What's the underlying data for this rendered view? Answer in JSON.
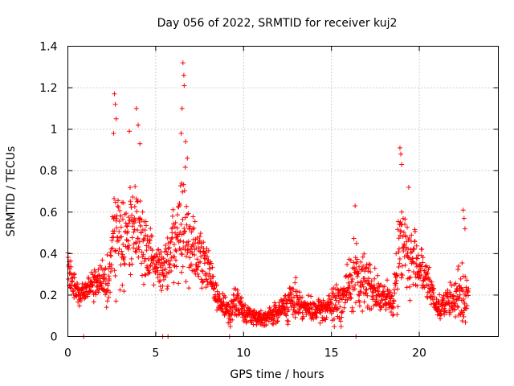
{
  "chart_data": {
    "type": "scatter",
    "title": "Day 056 of 2022, SRMTID for receiver kuj2",
    "xlabel": "GPS time / hours",
    "ylabel": "SRMTID / TECUs",
    "xlim": [
      0,
      24.5
    ],
    "ylim": [
      0,
      1.4
    ],
    "x_ticks": [
      0,
      5,
      10,
      15,
      20
    ],
    "y_ticks": [
      0,
      0.2,
      0.4,
      0.6,
      0.8,
      1,
      1.2,
      1.4
    ],
    "x_tick_labels": [
      "0",
      "5",
      "10",
      "15",
      "20"
    ],
    "y_tick_labels": [
      "0",
      "0.2",
      "0.4",
      "0.6",
      "0.8",
      "1",
      "1.2",
      "1.4"
    ],
    "grid": true,
    "marker": "+",
    "color": "#ff0000",
    "series": [
      {
        "name": "kuj2",
        "profile_x": [
          0.0,
          0.3,
          0.6,
          1.0,
          1.5,
          2.0,
          2.4,
          2.7,
          3.0,
          3.3,
          3.6,
          4.0,
          4.3,
          4.6,
          5.0,
          5.4,
          5.8,
          6.2,
          6.5,
          6.8,
          7.1,
          7.5,
          8.0,
          8.4,
          8.8,
          9.2,
          9.6,
          10.0,
          10.5,
          11.0,
          11.5,
          12.0,
          12.5,
          13.0,
          13.5,
          14.0,
          14.5,
          15.0,
          15.5,
          16.0,
          16.3,
          16.6,
          17.0,
          17.5,
          18.0,
          18.5,
          18.8,
          19.1,
          19.4,
          19.7,
          20.0,
          20.3,
          20.7,
          21.0,
          21.5,
          22.0,
          22.5,
          22.8
        ],
        "profile_center": [
          0.35,
          0.25,
          0.2,
          0.22,
          0.25,
          0.27,
          0.32,
          0.5,
          0.45,
          0.5,
          0.48,
          0.55,
          0.45,
          0.42,
          0.35,
          0.32,
          0.38,
          0.45,
          0.55,
          0.48,
          0.42,
          0.38,
          0.32,
          0.2,
          0.15,
          0.12,
          0.17,
          0.12,
          0.1,
          0.09,
          0.1,
          0.12,
          0.16,
          0.18,
          0.14,
          0.12,
          0.13,
          0.15,
          0.17,
          0.24,
          0.3,
          0.25,
          0.28,
          0.22,
          0.18,
          0.17,
          0.38,
          0.5,
          0.35,
          0.38,
          0.35,
          0.28,
          0.22,
          0.14,
          0.16,
          0.18,
          0.2,
          0.22
        ],
        "profile_spread": [
          0.15,
          0.1,
          0.08,
          0.08,
          0.1,
          0.12,
          0.25,
          0.45,
          0.35,
          0.3,
          0.3,
          0.32,
          0.25,
          0.2,
          0.15,
          0.15,
          0.2,
          0.3,
          0.5,
          0.35,
          0.25,
          0.2,
          0.15,
          0.1,
          0.08,
          0.08,
          0.1,
          0.07,
          0.06,
          0.05,
          0.06,
          0.08,
          0.12,
          0.12,
          0.08,
          0.07,
          0.08,
          0.12,
          0.15,
          0.2,
          0.25,
          0.2,
          0.2,
          0.15,
          0.1,
          0.12,
          0.35,
          0.3,
          0.25,
          0.2,
          0.2,
          0.15,
          0.12,
          0.08,
          0.1,
          0.12,
          0.3,
          0.08
        ],
        "peaks": [
          {
            "x": 2.65,
            "y": 1.17
          },
          {
            "x": 2.7,
            "y": 1.12
          },
          {
            "x": 2.75,
            "y": 1.05
          },
          {
            "x": 2.6,
            "y": 0.98
          },
          {
            "x": 3.5,
            "y": 0.99
          },
          {
            "x": 3.9,
            "y": 1.1
          },
          {
            "x": 4.0,
            "y": 1.02
          },
          {
            "x": 4.1,
            "y": 0.93
          },
          {
            "x": 6.55,
            "y": 1.32
          },
          {
            "x": 6.6,
            "y": 1.26
          },
          {
            "x": 6.62,
            "y": 1.21
          },
          {
            "x": 6.5,
            "y": 1.1
          },
          {
            "x": 6.45,
            "y": 0.98
          },
          {
            "x": 6.7,
            "y": 0.94
          },
          {
            "x": 6.8,
            "y": 0.86
          },
          {
            "x": 16.35,
            "y": 0.63
          },
          {
            "x": 18.9,
            "y": 0.91
          },
          {
            "x": 18.95,
            "y": 0.88
          },
          {
            "x": 19.0,
            "y": 0.83
          },
          {
            "x": 19.4,
            "y": 0.72
          },
          {
            "x": 22.5,
            "y": 0.61
          },
          {
            "x": 22.55,
            "y": 0.57
          },
          {
            "x": 22.6,
            "y": 0.52
          },
          {
            "x": 0.9,
            "y": 0.0
          },
          {
            "x": 5.7,
            "y": 0.0
          },
          {
            "x": 9.2,
            "y": 0.0
          },
          {
            "x": 16.4,
            "y": 0.0
          },
          {
            "x": 5.4,
            "y": 0.0
          }
        ]
      }
    ]
  }
}
